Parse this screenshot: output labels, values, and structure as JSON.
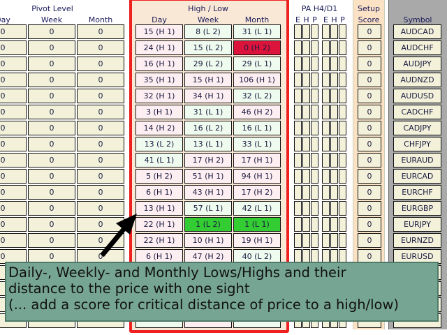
{
  "headers": {
    "pivot_level": "Pivot Level",
    "pivot_day": "Day",
    "pivot_week": "Week",
    "pivot_month": "Month",
    "high_low": "High / Low",
    "hl_day": "Day",
    "hl_week": "Week",
    "hl_month": "Month",
    "pa": "PA H4/D1",
    "pa_cols": [
      "E",
      "H",
      "P",
      "E",
      "H",
      "P"
    ],
    "setup_line1": "Setup",
    "setup_line2": "Score",
    "symbol": "Symbol"
  },
  "colors": {
    "highlight_border": "#ee2020",
    "high_cell": "#fdeef1",
    "low_cell": "#eefbee",
    "critical_high": "#dc143c",
    "critical_low": "#33cc33",
    "neutral_cell": "#f3f1d9",
    "callout_bg": "#76a594"
  },
  "rows": [
    {
      "pivot": [
        "0",
        "0",
        "0"
      ],
      "hl": [
        "15 (H 1)",
        "8 (L 2)",
        "31 (L 1)"
      ],
      "flags": [
        "",
        "",
        ""
      ],
      "score": "0",
      "symbol": "AUDCAD"
    },
    {
      "pivot": [
        "0",
        "0",
        "0"
      ],
      "hl": [
        "24 (H 1)",
        "15 (L 2)",
        "0 (H 2)"
      ],
      "flags": [
        "",
        "",
        "critical"
      ],
      "score": "0",
      "symbol": "AUDCHF"
    },
    {
      "pivot": [
        "0",
        "0",
        "0"
      ],
      "hl": [
        "16 (H 1)",
        "29 (L 2)",
        "29 (L 1)"
      ],
      "flags": [
        "",
        "",
        ""
      ],
      "score": "0",
      "symbol": "AUDJPY"
    },
    {
      "pivot": [
        "0",
        "0",
        "0"
      ],
      "hl": [
        "35 (H 1)",
        "15 (H 1)",
        "106 (H 1)"
      ],
      "flags": [
        "",
        "",
        ""
      ],
      "score": "0",
      "symbol": "AUDNZD"
    },
    {
      "pivot": [
        "0",
        "0",
        "0"
      ],
      "hl": [
        "32 (H 1)",
        "34 (H 1)",
        "32 (L 2)"
      ],
      "flags": [
        "",
        "",
        ""
      ],
      "score": "0",
      "symbol": "AUDUSD"
    },
    {
      "pivot": [
        "0",
        "0",
        "0"
      ],
      "hl": [
        "3 (H 1)",
        "31 (L 1)",
        "46 (H 2)"
      ],
      "flags": [
        "",
        "",
        ""
      ],
      "score": "0",
      "symbol": "CADCHF"
    },
    {
      "pivot": [
        "0",
        "0",
        "0"
      ],
      "hl": [
        "14 (H 2)",
        "16 (L 2)",
        "16 (L 1)"
      ],
      "flags": [
        "",
        "",
        ""
      ],
      "score": "0",
      "symbol": "CADJPY"
    },
    {
      "pivot": [
        "0",
        "0",
        "0"
      ],
      "hl": [
        "13 (L 2)",
        "13 (L 1)",
        "33 (L 1)"
      ],
      "flags": [
        "",
        "",
        ""
      ],
      "score": "0",
      "symbol": "CHFJPY"
    },
    {
      "pivot": [
        "0",
        "0",
        "0"
      ],
      "hl": [
        "41 (L 1)",
        "17 (H 2)",
        "17 (H 1)"
      ],
      "flags": [
        "",
        "",
        ""
      ],
      "score": "0",
      "symbol": "EURAUD"
    },
    {
      "pivot": [
        "0",
        "0",
        "0"
      ],
      "hl": [
        "5 (H 2)",
        "51 (H 1)",
        "94 (H 1)"
      ],
      "flags": [
        "",
        "",
        ""
      ],
      "score": "0",
      "symbol": "EURCAD"
    },
    {
      "pivot": [
        "0",
        "0",
        "0"
      ],
      "hl": [
        "6 (H 1)",
        "43 (H 1)",
        "17 (H 2)"
      ],
      "flags": [
        "",
        "",
        ""
      ],
      "score": "0",
      "symbol": "EURCHF"
    },
    {
      "pivot": [
        "0",
        "0",
        "0"
      ],
      "hl": [
        "13 (H 1)",
        "57 (L 1)",
        "42 (L 1)"
      ],
      "flags": [
        "",
        "",
        ""
      ],
      "score": "0",
      "symbol": "EURGBP"
    },
    {
      "pivot": [
        "0",
        "0",
        "0"
      ],
      "hl": [
        "22 (H 1)",
        "1 (L 2)",
        "1 (L 1)"
      ],
      "flags": [
        "",
        "critical",
        "critical"
      ],
      "score": "0",
      "symbol": "EURJPY"
    },
    {
      "pivot": [
        "0",
        "0",
        "0"
      ],
      "hl": [
        "22 (H 1)",
        "10 (H 1)",
        "19 (H 1)"
      ],
      "flags": [
        "",
        "",
        ""
      ],
      "score": "0",
      "symbol": "EURNZD"
    },
    {
      "pivot": [
        "0",
        "0",
        "0"
      ],
      "hl": [
        "6 (H 1)",
        "47 (H 2)",
        "40 (L 2)"
      ],
      "flags": [
        "",
        "",
        ""
      ],
      "score": "0",
      "symbol": "EURUSD"
    }
  ],
  "callout": {
    "line1": "Daily-, Weekly- and Monthly Lows/Highs and their",
    "line2": "distance to the price with one sight",
    "line3": "(... add a score for critical distance of price to a high/low)"
  }
}
